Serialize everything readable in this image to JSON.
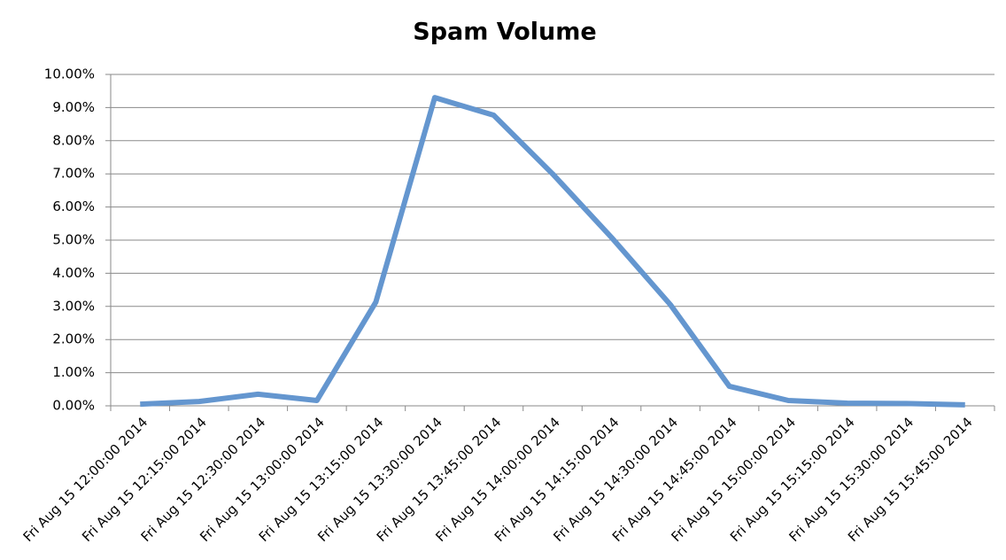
{
  "chart_data": {
    "type": "line",
    "title": "Spam Volume",
    "categories": [
      "Fri Aug 15 12:00:00 2014",
      "Fri Aug 15 12:15:00 2014",
      "Fri Aug 15 12:30:00 2014",
      "Fri Aug 15 13:00:00 2014",
      "Fri Aug 15 13:15:00 2014",
      "Fri Aug 15 13:30:00 2014",
      "Fri Aug 15 13:45:00 2014",
      "Fri Aug 15 14:00:00 2014",
      "Fri Aug 15 14:15:00 2014",
      "Fri Aug 15 14:30:00 2014",
      "Fri Aug 15 14:45:00 2014",
      "Fri Aug 15 15:00:00 2014",
      "Fri Aug 15 15:15:00 2014",
      "Fri Aug 15 15:30:00 2014",
      "Fri Aug 15 15:45:00 2014"
    ],
    "values": [
      0.05,
      0.13,
      0.35,
      0.16,
      3.13,
      9.3,
      8.77,
      7.0,
      5.08,
      3.05,
      0.59,
      0.16,
      0.08,
      0.07,
      0.03
    ],
    "color": "#6496cf",
    "ylim": [
      0,
      10
    ],
    "yticks": [
      {
        "value": 0,
        "label": "0.00%"
      },
      {
        "value": 1,
        "label": "1.00%"
      },
      {
        "value": 2,
        "label": "2.00%"
      },
      {
        "value": 3,
        "label": "3.00%"
      },
      {
        "value": 4,
        "label": "4.00%"
      },
      {
        "value": 5,
        "label": "5.00%"
      },
      {
        "value": 6,
        "label": "6.00%"
      },
      {
        "value": 7,
        "label": "7.00%"
      },
      {
        "value": 8,
        "label": "8.00%"
      },
      {
        "value": 9,
        "label": "9.00%"
      },
      {
        "value": 10,
        "label": "10.00%"
      }
    ],
    "grid": true
  }
}
